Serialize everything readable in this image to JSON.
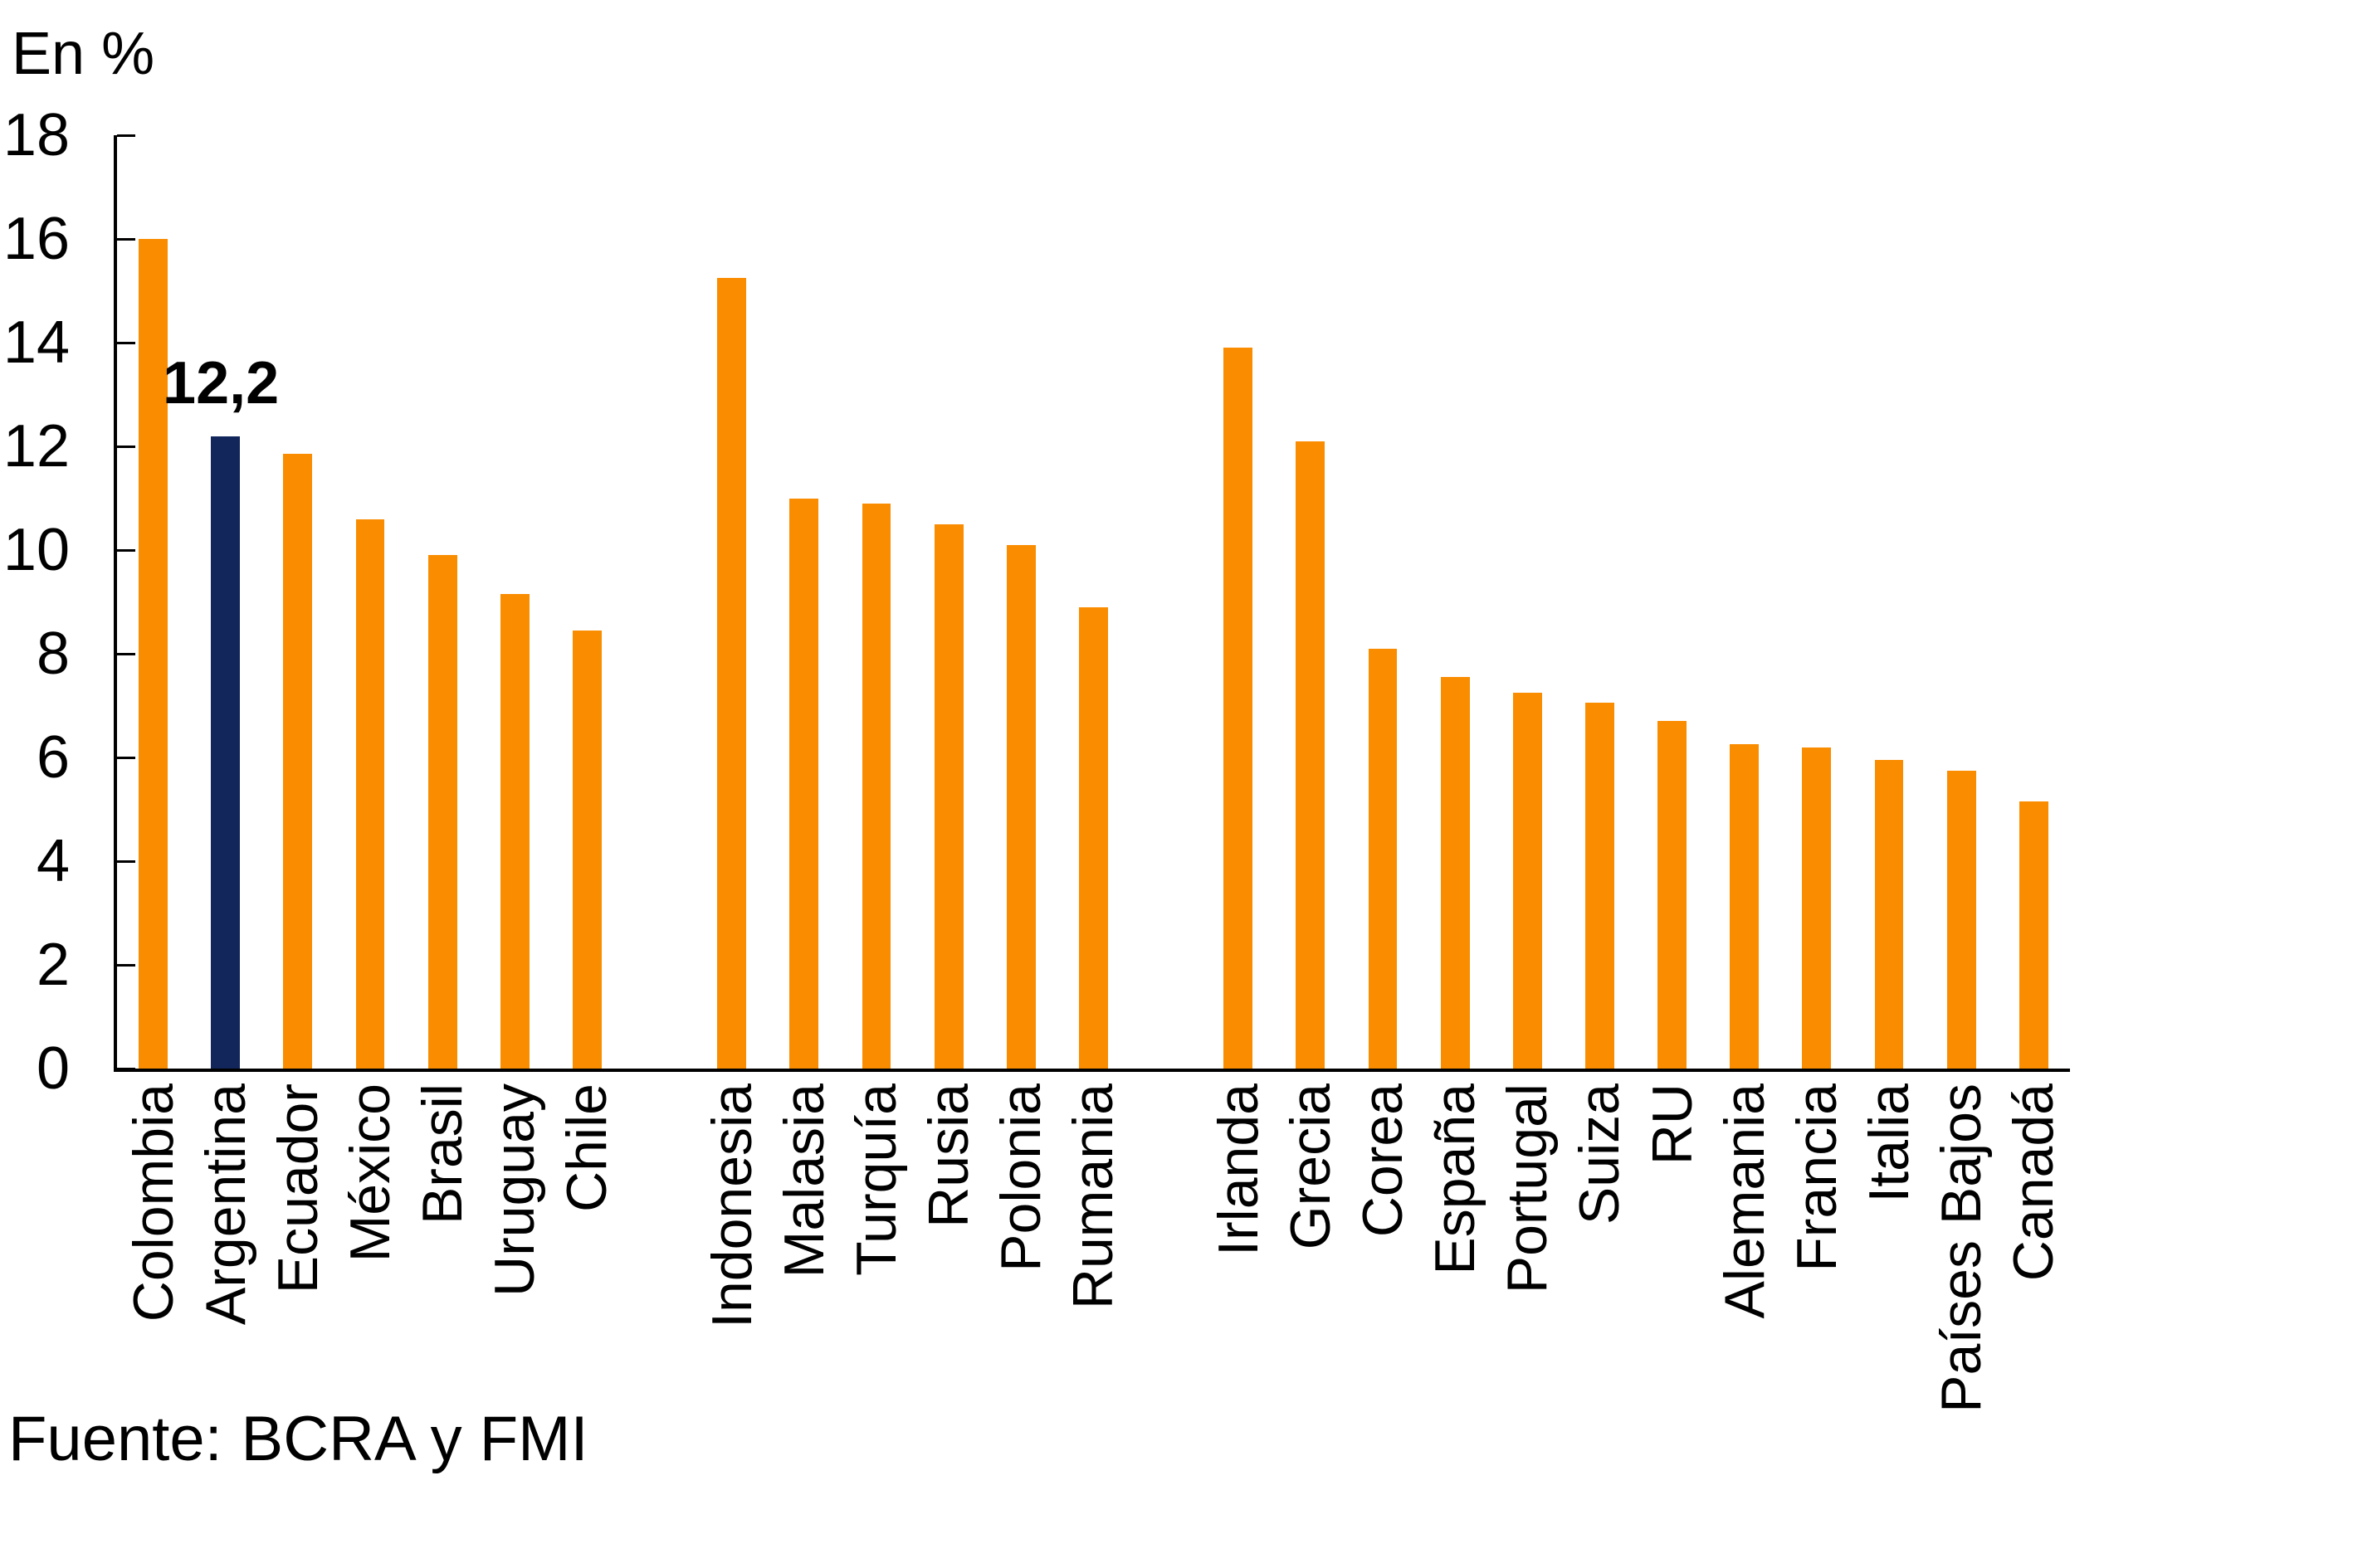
{
  "header": {
    "y_axis_unit": "En %"
  },
  "footer": {
    "label": "Fuente:",
    "value": "BCRA y FMI",
    "full_text": "Fuente: BCRA y FMI"
  },
  "chart_data": {
    "type": "bar",
    "title": "",
    "ylabel": "En %",
    "xlabel": "",
    "ylim": [
      0,
      18
    ],
    "yticks": [
      0,
      2,
      4,
      6,
      8,
      10,
      12,
      14,
      16,
      18
    ],
    "grid": false,
    "legend_position": "none",
    "tick_direction": "in",
    "highlight_category": "Argentina",
    "annotation": {
      "category": "Argentina",
      "text": "12,2",
      "value": 12.2
    },
    "colors": {
      "default_bar": "#FA8C00",
      "highlight_bar": "#12265B",
      "axis": "#000000",
      "text": "#000000",
      "background": "#FFFFFF"
    },
    "groups": [
      {
        "name": "group-1",
        "categories": [
          "Colombia",
          "Argentina",
          "Ecuador",
          "México",
          "Brasil",
          "Uruguay",
          "Chile"
        ],
        "values": [
          16.0,
          12.2,
          11.85,
          10.6,
          9.9,
          9.15,
          8.45
        ]
      },
      {
        "name": "group-2",
        "categories": [
          "Indonesia",
          "Malasia",
          "Turquía",
          "Rusia",
          "Polonia",
          "Rumania"
        ],
        "values": [
          15.25,
          11.0,
          10.9,
          10.5,
          10.1,
          8.9
        ]
      },
      {
        "name": "group-3",
        "categories": [
          "Irlanda",
          "Grecia",
          "Corea",
          "España",
          "Portugal",
          "Suiza",
          "RU",
          "Alemania",
          "Francia",
          "Italia",
          "Países Bajos",
          "Canadá"
        ],
        "values": [
          13.9,
          12.1,
          8.1,
          7.55,
          7.25,
          7.05,
          6.7,
          6.25,
          6.2,
          5.95,
          5.75,
          5.15
        ]
      }
    ],
    "source": "Fuente: BCRA y FMI"
  }
}
